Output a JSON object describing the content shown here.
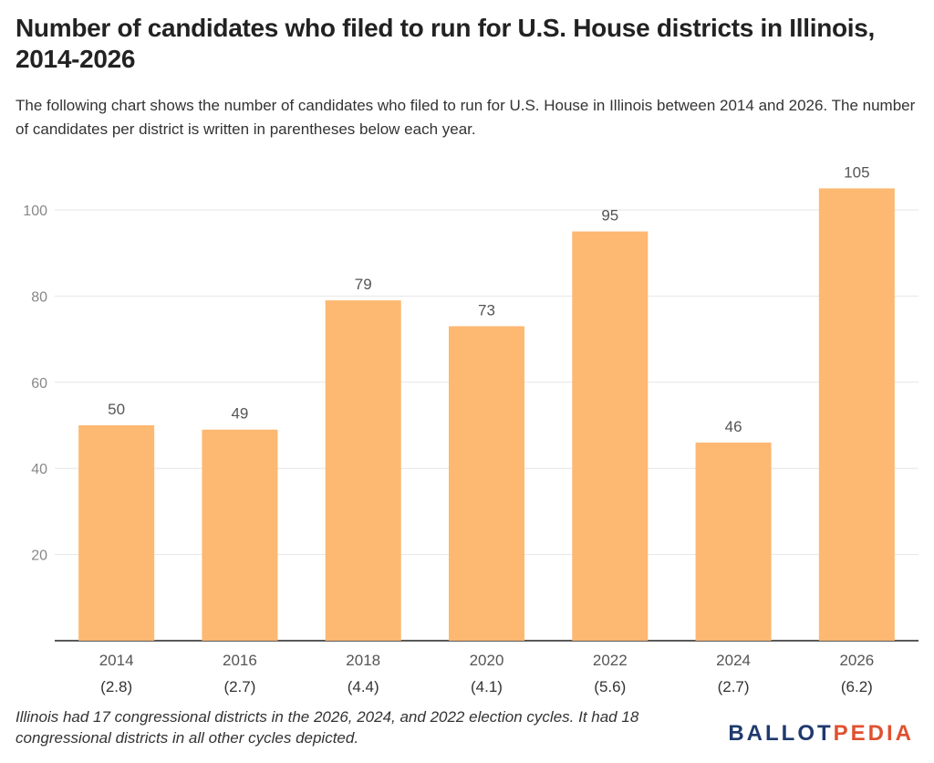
{
  "title": "Number of candidates who filed to run for U.S. House districts in Illinois, 2014-2026",
  "subtitle": "The following chart shows the number of candidates who filed to run for U.S. House in Illinois between 2014 and 2026. The number of candidates per district is written in parentheses below each year.",
  "footnote": "Illinois had 17 congressional districts in the 2026, 2024, and 2022 election cycles. It had 18 congressional districts in all other cycles depicted.",
  "logo": {
    "part1": "BALLOT",
    "part2": "PEDIA"
  },
  "colors": {
    "bar": "#fdb872",
    "grid": "#e6e6e6",
    "axis": "#222222",
    "tick": "#888888",
    "label": "#555555"
  },
  "chart_data": {
    "type": "bar",
    "title": "Number of candidates who filed to run for U.S. House districts in Illinois, 2014-2026",
    "xlabel": "",
    "ylabel": "",
    "categories": [
      "2014",
      "2016",
      "2018",
      "2020",
      "2022",
      "2024",
      "2026"
    ],
    "sublabels": [
      "(2.8)",
      "(2.7)",
      "(4.4)",
      "(4.1)",
      "(5.6)",
      "(2.7)",
      "(6.2)"
    ],
    "values": [
      50,
      49,
      79,
      73,
      95,
      46,
      105
    ],
    "yticks": [
      20,
      40,
      60,
      80,
      100
    ],
    "ylim": [
      0,
      110
    ],
    "grid": true
  }
}
